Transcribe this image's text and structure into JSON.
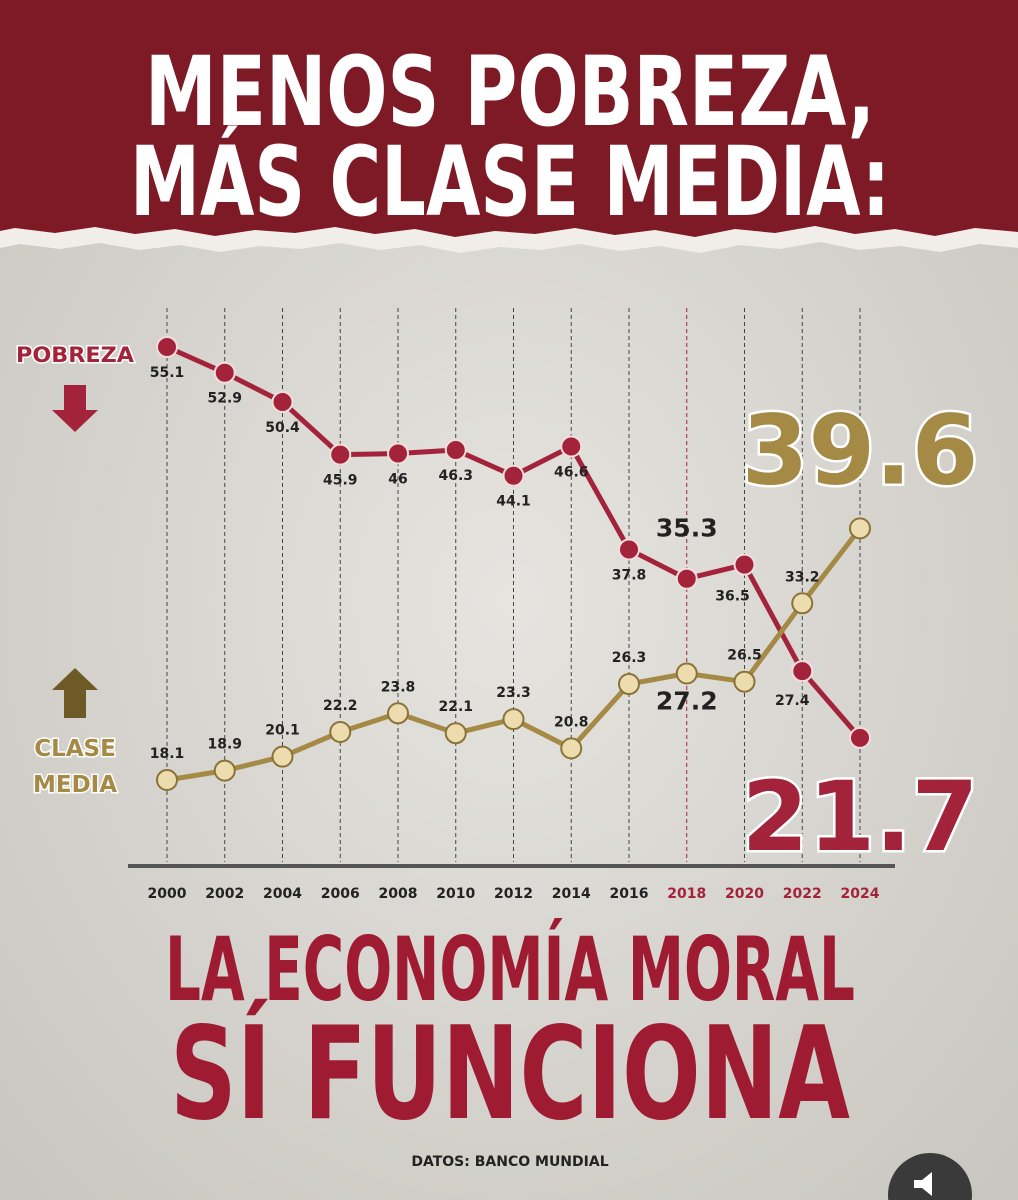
{
  "chart_data": {
    "type": "line",
    "title": [
      "MENOS POBREZA,",
      "MÁS CLASE MEDIA:"
    ],
    "subtitle": [
      "LA ECONOMÍA MORAL",
      "SÍ FUNCIONA"
    ],
    "source": "DATOS: BANCO MUNDIAL",
    "categories": [
      "2000",
      "2002",
      "2004",
      "2006",
      "2008",
      "2010",
      "2012",
      "2014",
      "2016",
      "2018",
      "2020",
      "2022",
      "2024"
    ],
    "series": [
      {
        "name": "POBREZA",
        "color": "#a3233a",
        "values": [
          55.1,
          52.9,
          50.4,
          45.9,
          46,
          46.3,
          44.1,
          46.6,
          37.8,
          35.3,
          36.5,
          27.4,
          21.7
        ]
      },
      {
        "name": "CLASE MEDIA",
        "color": "#a48a45",
        "values": [
          18.1,
          18.9,
          20.1,
          22.2,
          23.8,
          22.1,
          23.3,
          20.8,
          26.3,
          27.2,
          26.5,
          33.2,
          39.6
        ]
      }
    ]
  }
}
